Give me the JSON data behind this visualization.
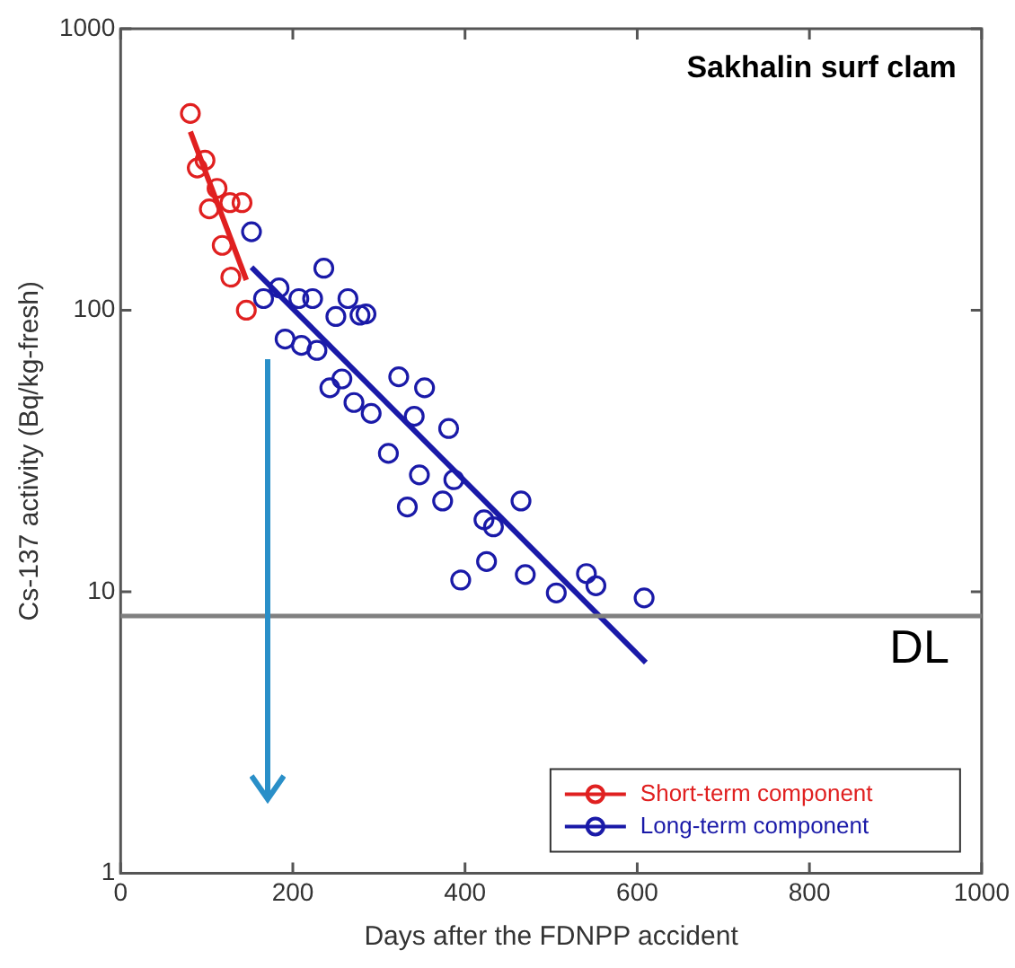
{
  "chart_data": {
    "type": "scatter",
    "title": "Sakhalin surf clam",
    "xlabel": "Days after the FDNPP accident",
    "ylabel": "Cs-137 activity (Bq/kg-fresh)",
    "xlim": [
      0,
      1000
    ],
    "xticks": [
      0,
      200,
      400,
      600,
      800,
      1000
    ],
    "ylim": [
      1,
      1000
    ],
    "yticks": [
      1,
      10,
      100,
      1000
    ],
    "log": "y",
    "grid": false,
    "legend": "bottom right",
    "series": [
      {
        "name": "Short-term component",
        "marker": "circle",
        "color": "#e02020",
        "x": [
          81,
          98,
          89,
          112,
          103,
          127,
          141,
          118,
          128,
          146
        ],
        "values": [
          500,
          341,
          320,
          271,
          229,
          241,
          241,
          170,
          131,
          100
        ]
      },
      {
        "type": "line",
        "marker": "none",
        "color": "#e02020",
        "x": [
          81,
          146
        ],
        "values": [
          431,
          128
        ]
      },
      {
        "name": "Long-term component",
        "marker": "circle",
        "color": "#1a1aa8",
        "x": [
          152,
          236,
          184,
          166,
          207,
          223,
          264,
          250,
          278,
          285,
          191,
          210,
          228,
          243,
          257,
          271,
          291,
          323,
          353,
          341,
          381,
          311,
          347,
          387,
          333,
          374,
          465,
          422,
          433,
          425,
          395,
          470,
          506,
          541,
          552,
          608
        ],
        "values": [
          190,
          141,
          120,
          110,
          110,
          110,
          110,
          95,
          96,
          97,
          79,
          75,
          72,
          53,
          57,
          47,
          43,
          58,
          53,
          42,
          38,
          31,
          26,
          25,
          20,
          21,
          21,
          18,
          17,
          12.8,
          11,
          11.5,
          9.9,
          11.6,
          10.5,
          9.5
        ]
      },
      {
        "type": "line",
        "marker": "none",
        "color": "#1a1aa8",
        "x": [
          152,
          610
        ],
        "values": [
          142,
          5.6
        ]
      }
    ],
    "ref_lines": [
      {
        "axis": "y",
        "value": 8.2,
        "label": "DL",
        "color": "#808080"
      }
    ]
  }
}
